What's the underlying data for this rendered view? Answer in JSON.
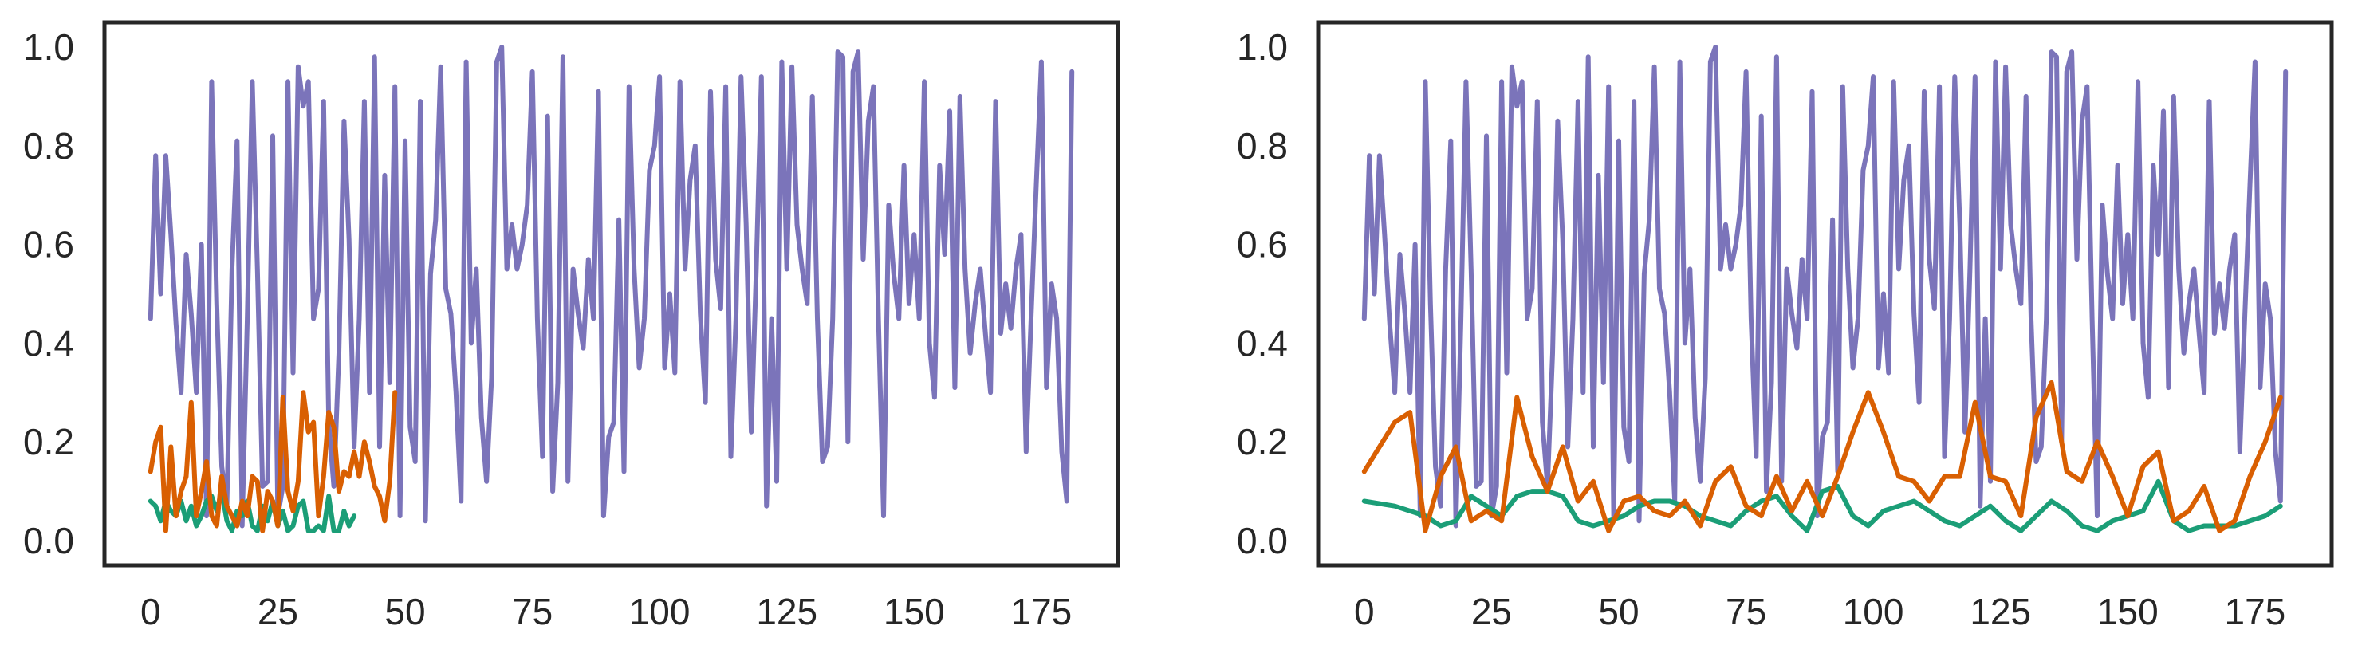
{
  "figure": {
    "background": "#ffffff",
    "plot_border_color": "#262626",
    "tick_label_color": "#262626"
  },
  "chart_data": [
    {
      "type": "line",
      "title": "",
      "xlabel": "",
      "ylabel": "",
      "grid": false,
      "legend": null,
      "xlim": [
        -9.05,
        190.05
      ],
      "ylim": [
        -0.05,
        1.05
      ],
      "x_ticks": [
        0,
        25,
        50,
        75,
        100,
        125,
        150,
        175
      ],
      "y_ticks": [
        0.0,
        0.2,
        0.4,
        0.6,
        0.8,
        1.0
      ],
      "y_tick_labels": [
        "0.0",
        "0.2",
        "0.4",
        "0.6",
        "0.8",
        "1.0"
      ],
      "series": [
        {
          "name": "purple-signal",
          "color": "#7b74ba",
          "x_start": 0,
          "x_step": 1,
          "values": [
            0.45,
            0.78,
            0.5,
            0.78,
            0.62,
            0.44,
            0.3,
            0.58,
            0.46,
            0.3,
            0.6,
            0.05,
            0.93,
            0.48,
            0.15,
            0.07,
            0.55,
            0.81,
            0.03,
            0.45,
            0.93,
            0.55,
            0.11,
            0.12,
            0.82,
            0.05,
            0.11,
            0.93,
            0.34,
            0.96,
            0.88,
            0.93,
            0.45,
            0.51,
            0.89,
            0.24,
            0.11,
            0.38,
            0.85,
            0.61,
            0.19,
            0.45,
            0.89,
            0.3,
            0.98,
            0.19,
            0.74,
            0.32,
            0.92,
            0.05,
            0.81,
            0.23,
            0.16,
            0.89,
            0.04,
            0.54,
            0.65,
            0.96,
            0.51,
            0.46,
            0.3,
            0.08,
            0.97,
            0.4,
            0.55,
            0.25,
            0.12,
            0.33,
            0.97,
            1.0,
            0.55,
            0.64,
            0.55,
            0.6,
            0.68,
            0.95,
            0.45,
            0.17,
            0.86,
            0.1,
            0.32,
            0.98,
            0.12,
            0.55,
            0.46,
            0.39,
            0.57,
            0.45,
            0.91,
            0.05,
            0.21,
            0.24,
            0.65,
            0.14,
            0.92,
            0.55,
            0.35,
            0.45,
            0.75,
            0.8,
            0.94,
            0.35,
            0.5,
            0.34,
            0.93,
            0.55,
            0.73,
            0.8,
            0.46,
            0.28,
            0.91,
            0.57,
            0.47,
            0.92,
            0.17,
            0.45,
            0.94,
            0.64,
            0.22,
            0.55,
            0.94,
            0.07,
            0.45,
            0.12,
            0.97,
            0.55,
            0.96,
            0.64,
            0.55,
            0.48,
            0.9,
            0.45,
            0.16,
            0.19,
            0.45,
            0.99,
            0.98,
            0.2,
            0.95,
            0.99,
            0.57,
            0.85,
            0.92,
            0.45,
            0.05,
            0.68,
            0.54,
            0.45,
            0.76,
            0.48,
            0.62,
            0.45,
            0.93,
            0.4,
            0.29,
            0.76,
            0.58,
            0.87,
            0.31,
            0.9,
            0.55,
            0.38,
            0.48,
            0.55,
            0.42,
            0.3,
            0.89,
            0.42,
            0.52,
            0.43,
            0.55,
            0.62,
            0.18,
            0.46,
            0.72,
            0.97,
            0.31,
            0.52,
            0.45,
            0.18,
            0.08,
            0.95
          ]
        },
        {
          "name": "green-signal",
          "color": "#1b9e77",
          "x_start": 0,
          "x_step": 1,
          "values": [
            0.08,
            0.07,
            0.04,
            0.08,
            0.06,
            0.05,
            0.08,
            0.04,
            0.07,
            0.03,
            0.05,
            0.08,
            0.09,
            0.06,
            0.1,
            0.04,
            0.02,
            0.06,
            0.05,
            0.08,
            0.03,
            0.02,
            0.07,
            0.04,
            0.08,
            0.03,
            0.06,
            0.02,
            0.03,
            0.07,
            0.08,
            0.02,
            0.02,
            0.03,
            0.02,
            0.09,
            0.02,
            0.02,
            0.06,
            0.03,
            0.05
          ]
        },
        {
          "name": "orange-signal",
          "color": "#d95f02",
          "x_start": 0,
          "x_step": 1,
          "values": [
            0.14,
            0.2,
            0.23,
            0.02,
            0.19,
            0.05,
            0.1,
            0.13,
            0.28,
            0.05,
            0.1,
            0.16,
            0.05,
            0.03,
            0.13,
            0.07,
            0.05,
            0.03,
            0.08,
            0.05,
            0.13,
            0.12,
            0.02,
            0.1,
            0.08,
            0.03,
            0.29,
            0.1,
            0.06,
            0.12,
            0.3,
            0.22,
            0.24,
            0.05,
            0.13,
            0.26,
            0.23,
            0.1,
            0.14,
            0.13,
            0.18,
            0.13,
            0.2,
            0.16,
            0.11,
            0.09,
            0.04,
            0.12,
            0.3
          ]
        }
      ]
    },
    {
      "type": "line",
      "title": "",
      "xlabel": "",
      "ylabel": "",
      "grid": false,
      "legend": null,
      "xlim": [
        -9.05,
        190.05
      ],
      "ylim": [
        -0.05,
        1.05
      ],
      "x_ticks": [
        0,
        25,
        50,
        75,
        100,
        125,
        150,
        175
      ],
      "y_ticks": [
        0.0,
        0.2,
        0.4,
        0.6,
        0.8,
        1.0
      ],
      "y_tick_labels": [
        "0.0",
        "0.2",
        "0.4",
        "0.6",
        "0.8",
        "1.0"
      ],
      "series": [
        {
          "name": "purple-signal",
          "color": "#7b74ba",
          "x_start": 0,
          "x_step": 1,
          "values": [
            0.45,
            0.78,
            0.5,
            0.78,
            0.62,
            0.44,
            0.3,
            0.58,
            0.46,
            0.3,
            0.6,
            0.05,
            0.93,
            0.48,
            0.15,
            0.07,
            0.55,
            0.81,
            0.03,
            0.45,
            0.93,
            0.55,
            0.11,
            0.12,
            0.82,
            0.05,
            0.11,
            0.93,
            0.34,
            0.96,
            0.88,
            0.93,
            0.45,
            0.51,
            0.89,
            0.24,
            0.11,
            0.38,
            0.85,
            0.61,
            0.19,
            0.45,
            0.89,
            0.3,
            0.98,
            0.19,
            0.74,
            0.32,
            0.92,
            0.05,
            0.81,
            0.23,
            0.16,
            0.89,
            0.04,
            0.54,
            0.65,
            0.96,
            0.51,
            0.46,
            0.3,
            0.08,
            0.97,
            0.4,
            0.55,
            0.25,
            0.12,
            0.33,
            0.97,
            1.0,
            0.55,
            0.64,
            0.55,
            0.6,
            0.68,
            0.95,
            0.45,
            0.17,
            0.86,
            0.1,
            0.32,
            0.98,
            0.12,
            0.55,
            0.46,
            0.39,
            0.57,
            0.45,
            0.91,
            0.05,
            0.21,
            0.24,
            0.65,
            0.14,
            0.92,
            0.55,
            0.35,
            0.45,
            0.75,
            0.8,
            0.94,
            0.35,
            0.5,
            0.34,
            0.93,
            0.55,
            0.73,
            0.8,
            0.46,
            0.28,
            0.91,
            0.57,
            0.47,
            0.92,
            0.17,
            0.45,
            0.94,
            0.64,
            0.22,
            0.55,
            0.94,
            0.07,
            0.45,
            0.12,
            0.97,
            0.55,
            0.96,
            0.64,
            0.55,
            0.48,
            0.9,
            0.45,
            0.16,
            0.19,
            0.45,
            0.99,
            0.98,
            0.2,
            0.95,
            0.99,
            0.57,
            0.85,
            0.92,
            0.45,
            0.05,
            0.68,
            0.54,
            0.45,
            0.76,
            0.48,
            0.62,
            0.45,
            0.93,
            0.4,
            0.29,
            0.76,
            0.58,
            0.87,
            0.31,
            0.9,
            0.55,
            0.38,
            0.48,
            0.55,
            0.42,
            0.3,
            0.89,
            0.42,
            0.52,
            0.43,
            0.55,
            0.62,
            0.18,
            0.46,
            0.72,
            0.97,
            0.31,
            0.52,
            0.45,
            0.18,
            0.08,
            0.95
          ]
        },
        {
          "name": "green-signal",
          "color": "#1b9e77",
          "x_start": 0,
          "x_step": 3,
          "values": [
            0.08,
            0.075,
            0.07,
            0.06,
            0.05,
            0.03,
            0.04,
            0.09,
            0.07,
            0.05,
            0.09,
            0.1,
            0.1,
            0.09,
            0.04,
            0.03,
            0.04,
            0.05,
            0.07,
            0.08,
            0.08,
            0.07,
            0.05,
            0.04,
            0.03,
            0.06,
            0.08,
            0.09,
            0.05,
            0.02,
            0.1,
            0.11,
            0.05,
            0.03,
            0.06,
            0.07,
            0.08,
            0.06,
            0.04,
            0.03,
            0.05,
            0.07,
            0.04,
            0.02,
            0.05,
            0.08,
            0.06,
            0.03,
            0.02,
            0.04,
            0.05,
            0.06,
            0.12,
            0.04,
            0.02,
            0.03,
            0.03,
            0.03,
            0.04,
            0.05,
            0.07
          ]
        },
        {
          "name": "orange-signal",
          "color": "#d95f02",
          "x_start": 0,
          "x_step": 3,
          "values": [
            0.14,
            0.19,
            0.24,
            0.26,
            0.02,
            0.13,
            0.19,
            0.04,
            0.06,
            0.04,
            0.29,
            0.17,
            0.1,
            0.19,
            0.08,
            0.12,
            0.02,
            0.08,
            0.09,
            0.06,
            0.05,
            0.08,
            0.03,
            0.12,
            0.15,
            0.07,
            0.05,
            0.13,
            0.06,
            0.12,
            0.05,
            0.13,
            0.22,
            0.3,
            0.22,
            0.13,
            0.12,
            0.08,
            0.13,
            0.13,
            0.28,
            0.13,
            0.12,
            0.05,
            0.25,
            0.32,
            0.14,
            0.12,
            0.2,
            0.13,
            0.05,
            0.15,
            0.18,
            0.04,
            0.06,
            0.11,
            0.02,
            0.04,
            0.13,
            0.2,
            0.29
          ]
        }
      ]
    }
  ]
}
